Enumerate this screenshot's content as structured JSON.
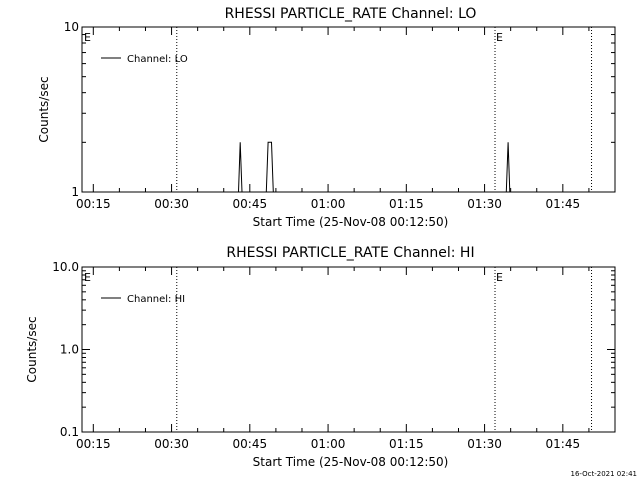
{
  "chart_data": [
    {
      "type": "line",
      "title": "RHESSI PARTICLE_RATE Channel: LO",
      "xlabel": "Start Time (25-Nov-08 00:12:50)",
      "ylabel": "Counts/sec",
      "yscale": "log",
      "ylim": [
        1,
        10
      ],
      "y_ticks": [
        {
          "value": 1,
          "label": "1"
        },
        {
          "value": 10,
          "label": "10"
        }
      ],
      "x_range": [
        "00:12:50",
        "01:55:00"
      ],
      "x_ticks": [
        "00:15",
        "00:30",
        "00:45",
        "01:00",
        "01:15",
        "01:30",
        "01:45"
      ],
      "legend": {
        "position": "top-left",
        "entries": [
          "Channel: LO"
        ]
      },
      "series": [
        {
          "name": "Channel: LO",
          "color": "#000000",
          "points": [
            [
              "00:42:50",
              1
            ],
            [
              "00:43:10",
              2
            ],
            [
              "00:43:30",
              1
            ],
            [
              "00:48:10",
              1
            ],
            [
              "00:48:30",
              2
            ],
            [
              "00:49:10",
              2
            ],
            [
              "00:49:30",
              1
            ],
            [
              "01:34:10",
              1
            ],
            [
              "01:34:30",
              2
            ],
            [
              "01:34:50",
              1
            ]
          ]
        }
      ],
      "vertical_lines": [
        {
          "time": "00:12:50",
          "label": "E"
        },
        {
          "time": "00:31:00",
          "label": ""
        },
        {
          "time": "01:32:00",
          "label": "E"
        },
        {
          "time": "01:50:30",
          "label": ""
        }
      ]
    },
    {
      "type": "line",
      "title": "RHESSI PARTICLE_RATE Channel: HI",
      "xlabel": "Start Time (25-Nov-08 00:12:50)",
      "ylabel": "Counts/sec",
      "yscale": "log",
      "ylim": [
        0.1,
        10
      ],
      "y_ticks": [
        {
          "value": 0.1,
          "label": "0.1"
        },
        {
          "value": 1,
          "label": "1.0"
        },
        {
          "value": 10,
          "label": "10.0"
        }
      ],
      "x_range": [
        "00:12:50",
        "01:55:00"
      ],
      "x_ticks": [
        "00:15",
        "00:30",
        "00:45",
        "01:00",
        "01:15",
        "01:30",
        "01:45"
      ],
      "legend": {
        "position": "top-left",
        "entries": [
          "Channel: HI"
        ]
      },
      "series": [
        {
          "name": "Channel: HI",
          "color": "#000000",
          "points": []
        }
      ],
      "vertical_lines": [
        {
          "time": "00:12:50",
          "label": "E"
        },
        {
          "time": "00:31:00",
          "label": ""
        },
        {
          "time": "01:32:00",
          "label": "E"
        },
        {
          "time": "01:50:30",
          "label": ""
        }
      ]
    }
  ],
  "footer": {
    "timestamp": "16-Oct-2021 02:41"
  }
}
